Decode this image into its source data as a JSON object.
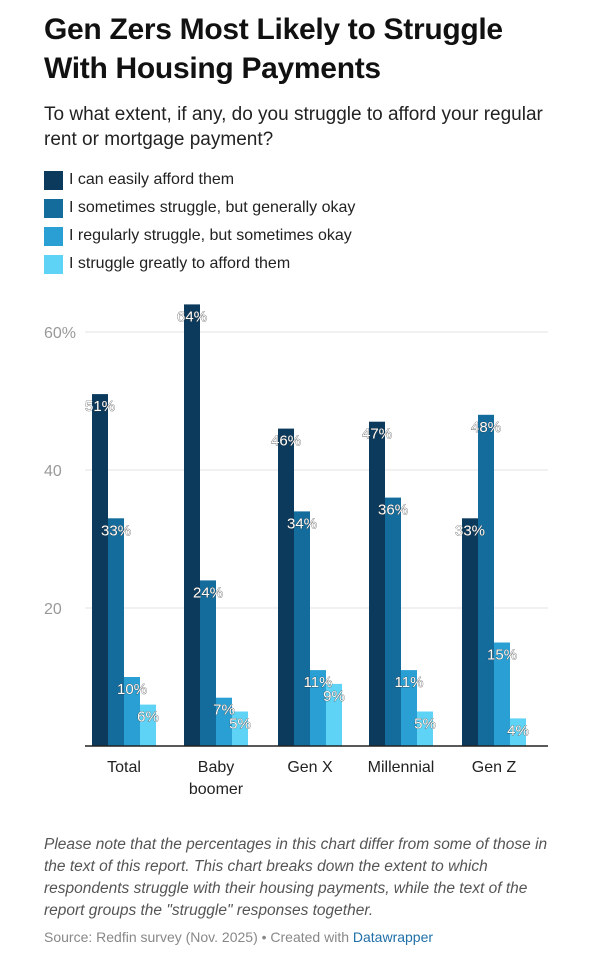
{
  "title": "Gen Zers Most Likely to Struggle With Housing Payments",
  "subtitle": "To what extent, if any, do you struggle to afford your regular rent or mortgage payment?",
  "colors": {
    "easily": "#0b3a5c",
    "sometimes": "#136c9b",
    "regularly": "#2a9fd3",
    "greatly": "#5fd3f5"
  },
  "chart_data": {
    "type": "bar",
    "categories": [
      "Total",
      "Baby boomer",
      "Gen X",
      "Millennial",
      "Gen Z"
    ],
    "category_lines": [
      [
        "Total"
      ],
      [
        "Baby",
        "boomer"
      ],
      [
        "Gen X"
      ],
      [
        "Millennial"
      ],
      [
        "Gen Z"
      ]
    ],
    "series": [
      {
        "name": "I can easily afford them",
        "color": "#0b3a5c",
        "values": [
          51,
          64,
          46,
          47,
          33
        ]
      },
      {
        "name": "I sometimes struggle, but generally okay",
        "color": "#136c9b",
        "values": [
          33,
          24,
          34,
          36,
          48
        ]
      },
      {
        "name": "I regularly struggle, but sometimes okay",
        "color": "#2a9fd3",
        "values": [
          10,
          7,
          11,
          11,
          15
        ]
      },
      {
        "name": "I struggle greatly to afford them",
        "color": "#5fd3f5",
        "values": [
          6,
          5,
          9,
          5,
          4
        ]
      }
    ],
    "y_ticks": [
      "20",
      "40",
      "60%"
    ],
    "y_tick_values": [
      20,
      40,
      60
    ],
    "ylim": [
      0,
      64
    ],
    "grid": true,
    "legend_position": "top-left"
  },
  "note": "Please note that the percentages in this chart differ from some of those in the text of this report. This chart breaks down the extent to which respondents struggle with their housing payments, while the text of the report groups the \"struggle\" responses together.",
  "source": {
    "prefix": "Source: Redfin survey (Nov. 2025) • Created with ",
    "link": "Datawrapper"
  }
}
